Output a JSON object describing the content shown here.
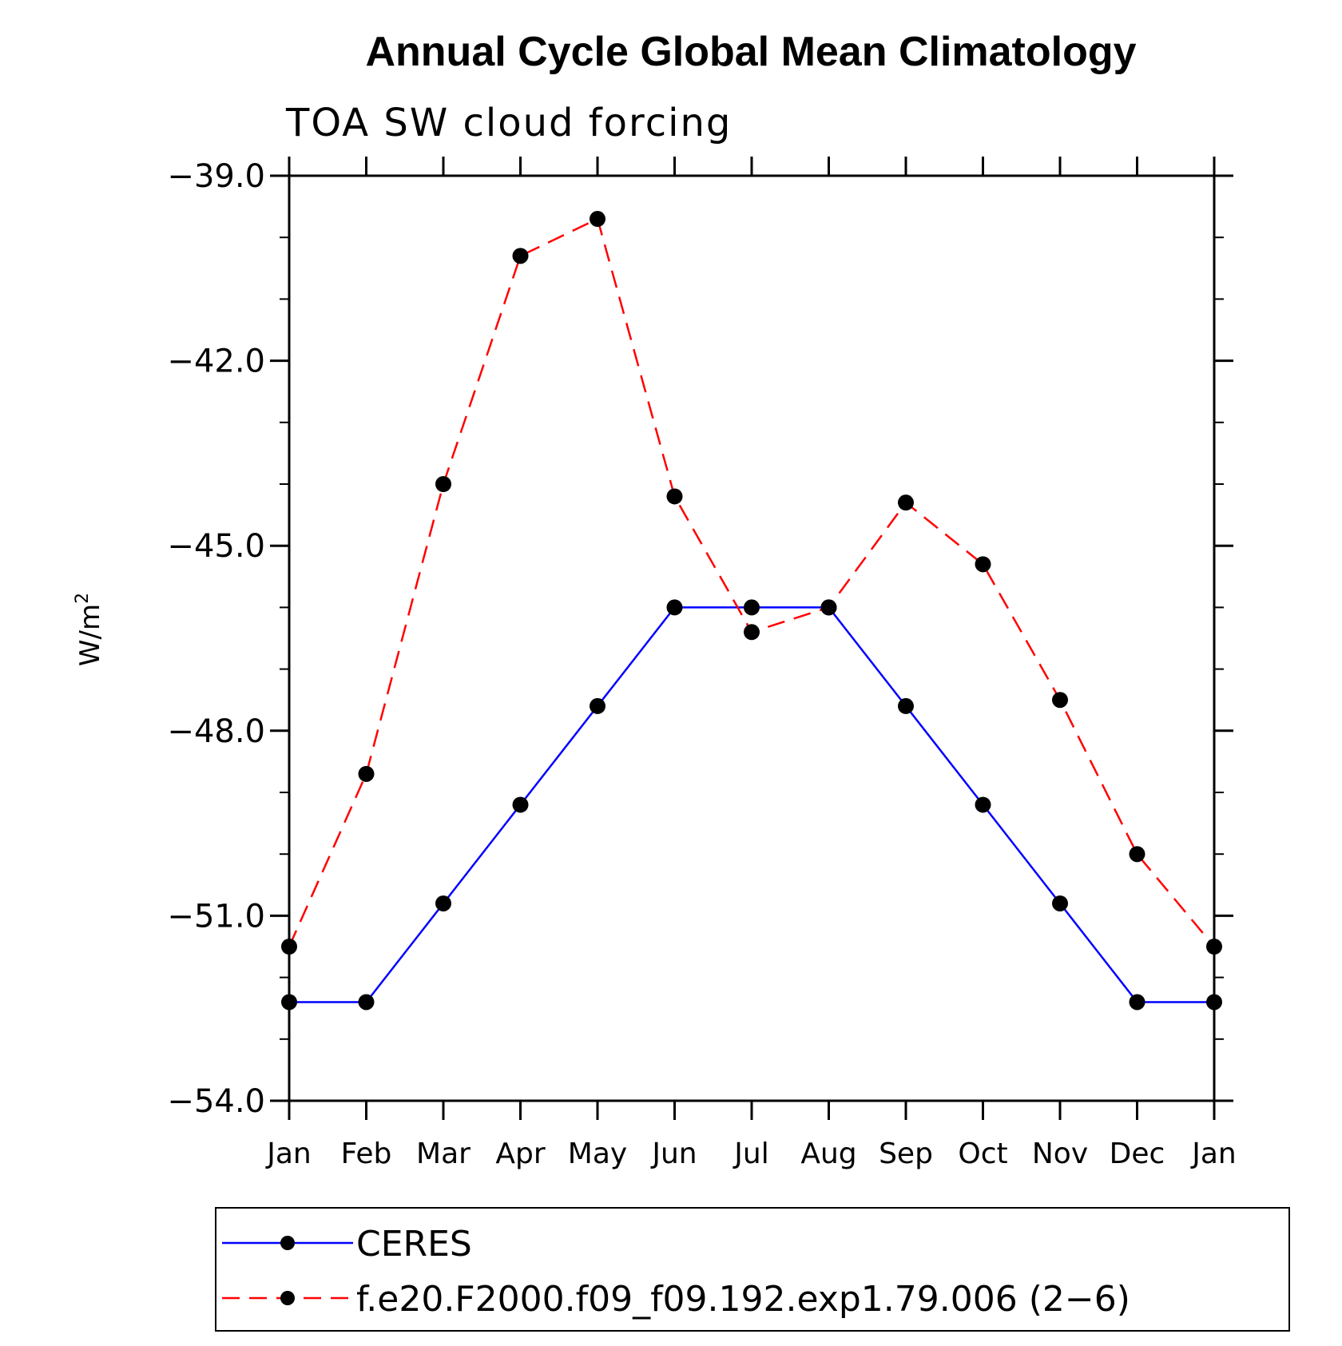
{
  "chart_data": {
    "type": "line",
    "title": "Annual Cycle Global Mean Climatology",
    "subtitle": "TOA SW cloud forcing",
    "ylabel": "W/m²",
    "ylabel_base": "W/m",
    "ylabel_sup": "2",
    "xlabel": "",
    "ylim": [
      -54.0,
      -39.0
    ],
    "yticks": [
      -39.0,
      -42.0,
      -45.0,
      -48.0,
      -51.0,
      -54.0
    ],
    "ytick_labels": [
      "−39.0",
      "−42.0",
      "−45.0",
      "−48.0",
      "−51.0",
      "−54.0"
    ],
    "categories": [
      "Jan",
      "Feb",
      "Mar",
      "Apr",
      "May",
      "Jun",
      "Jul",
      "Aug",
      "Sep",
      "Oct",
      "Nov",
      "Dec",
      "Jan"
    ],
    "grid": false,
    "legend_position": "bottom",
    "series": [
      {
        "name": "CERES",
        "color": "#0000ff",
        "line_style": "solid",
        "marker": "filled-circle",
        "values": [
          -52.4,
          -52.4,
          -50.8,
          -49.2,
          -47.6,
          -46.0,
          -46.0,
          -46.0,
          -47.6,
          -49.2,
          -50.8,
          -52.4,
          -52.4
        ]
      },
      {
        "name": "f.e20.F2000.f09_f09.192.exp1.79.006 (2−6)",
        "color": "#ff0000",
        "line_style": "dashed",
        "marker": "filled-circle",
        "values": [
          -51.5,
          -48.7,
          -44.0,
          -40.3,
          -39.7,
          -44.2,
          -46.4,
          -46.0,
          -44.3,
          -45.3,
          -47.5,
          -50.0,
          -51.5
        ]
      }
    ]
  }
}
